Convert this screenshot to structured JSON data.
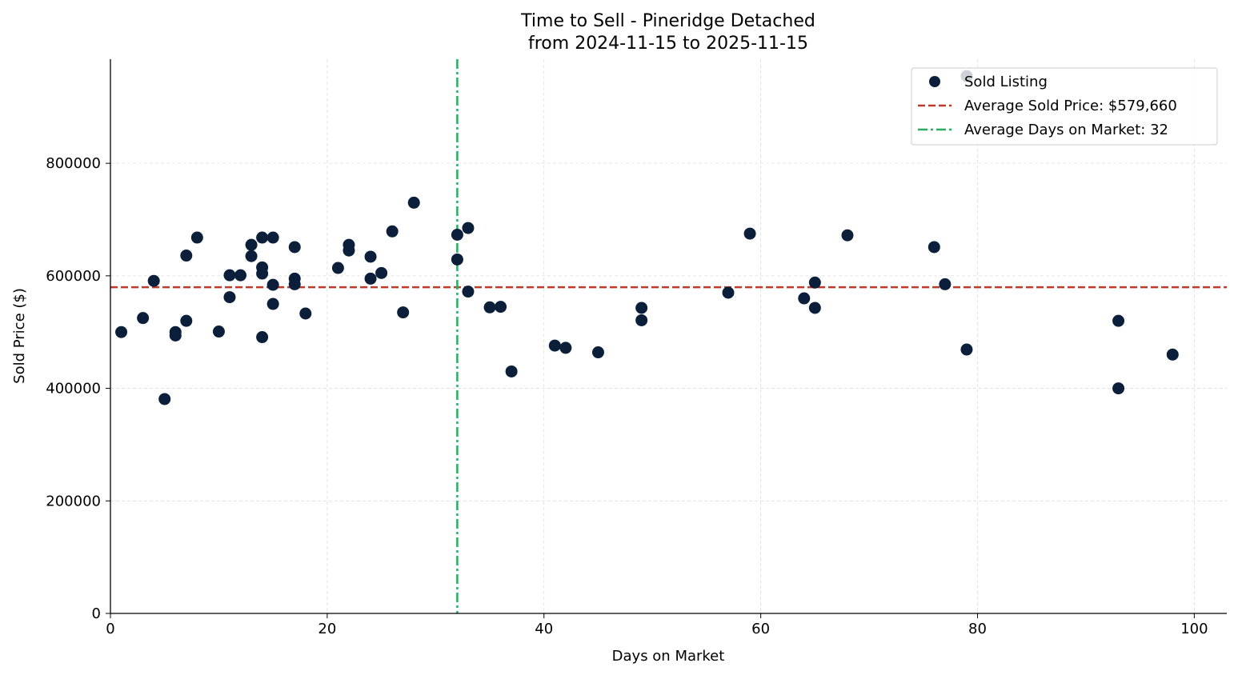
{
  "chart_data": {
    "type": "scatter",
    "title": "Time to Sell - Pineridge Detached",
    "subtitle": "from 2024-11-15 to 2025-11-15",
    "xlabel": "Days on Market",
    "ylabel": "Sold Price ($)",
    "xlim": [
      0,
      103
    ],
    "ylim": [
      0,
      985000
    ],
    "xticks": [
      0,
      20,
      40,
      60,
      80,
      100
    ],
    "yticks": [
      0,
      200000,
      400000,
      600000,
      800000
    ],
    "grid": true,
    "legend_placement": "top-right",
    "colors": {
      "points": "#0b1f3a",
      "avg_price": "#c0392b",
      "avg_days": "#27ae60"
    },
    "series": [
      {
        "name": "Sold Listing",
        "points": [
          [
            1,
            500000
          ],
          [
            3,
            525000
          ],
          [
            4,
            591000
          ],
          [
            5,
            381000
          ],
          [
            6,
            500000
          ],
          [
            6,
            494000
          ],
          [
            7,
            636000
          ],
          [
            7,
            520000
          ],
          [
            8,
            668000
          ],
          [
            10,
            501000
          ],
          [
            11,
            601000
          ],
          [
            11,
            562000
          ],
          [
            12,
            601000
          ],
          [
            13,
            655000
          ],
          [
            13,
            635000
          ],
          [
            14,
            668000
          ],
          [
            14,
            615000
          ],
          [
            14,
            604000
          ],
          [
            14,
            491000
          ],
          [
            15,
            668000
          ],
          [
            15,
            584000
          ],
          [
            15,
            550000
          ],
          [
            17,
            651000
          ],
          [
            17,
            595000
          ],
          [
            17,
            585000
          ],
          [
            18,
            533000
          ],
          [
            21,
            614000
          ],
          [
            22,
            655000
          ],
          [
            22,
            645000
          ],
          [
            24,
            634000
          ],
          [
            24,
            595000
          ],
          [
            25,
            605000
          ],
          [
            26,
            679000
          ],
          [
            27,
            535000
          ],
          [
            28,
            730000
          ],
          [
            32,
            673000
          ],
          [
            32,
            629000
          ],
          [
            33,
            685000
          ],
          [
            33,
            572000
          ],
          [
            35,
            544000
          ],
          [
            36,
            545000
          ],
          [
            37,
            430000
          ],
          [
            41,
            476000
          ],
          [
            42,
            472000
          ],
          [
            45,
            464000
          ],
          [
            49,
            543000
          ],
          [
            49,
            521000
          ],
          [
            57,
            570000
          ],
          [
            59,
            675000
          ],
          [
            64,
            560000
          ],
          [
            65,
            588000
          ],
          [
            65,
            543000
          ],
          [
            68,
            672000
          ],
          [
            76,
            651000
          ],
          [
            77,
            585000
          ],
          [
            79,
            955000
          ],
          [
            79,
            469000
          ],
          [
            93,
            520000
          ],
          [
            93,
            400000
          ],
          [
            98,
            460000
          ]
        ]
      }
    ],
    "reference_lines": [
      {
        "name": "Average Sold Price: $579,660",
        "orientation": "horizontal",
        "value": 579660,
        "style": "dashed"
      },
      {
        "name": "Average Days on Market: 32",
        "orientation": "vertical",
        "value": 32,
        "style": "dashdot"
      }
    ]
  }
}
